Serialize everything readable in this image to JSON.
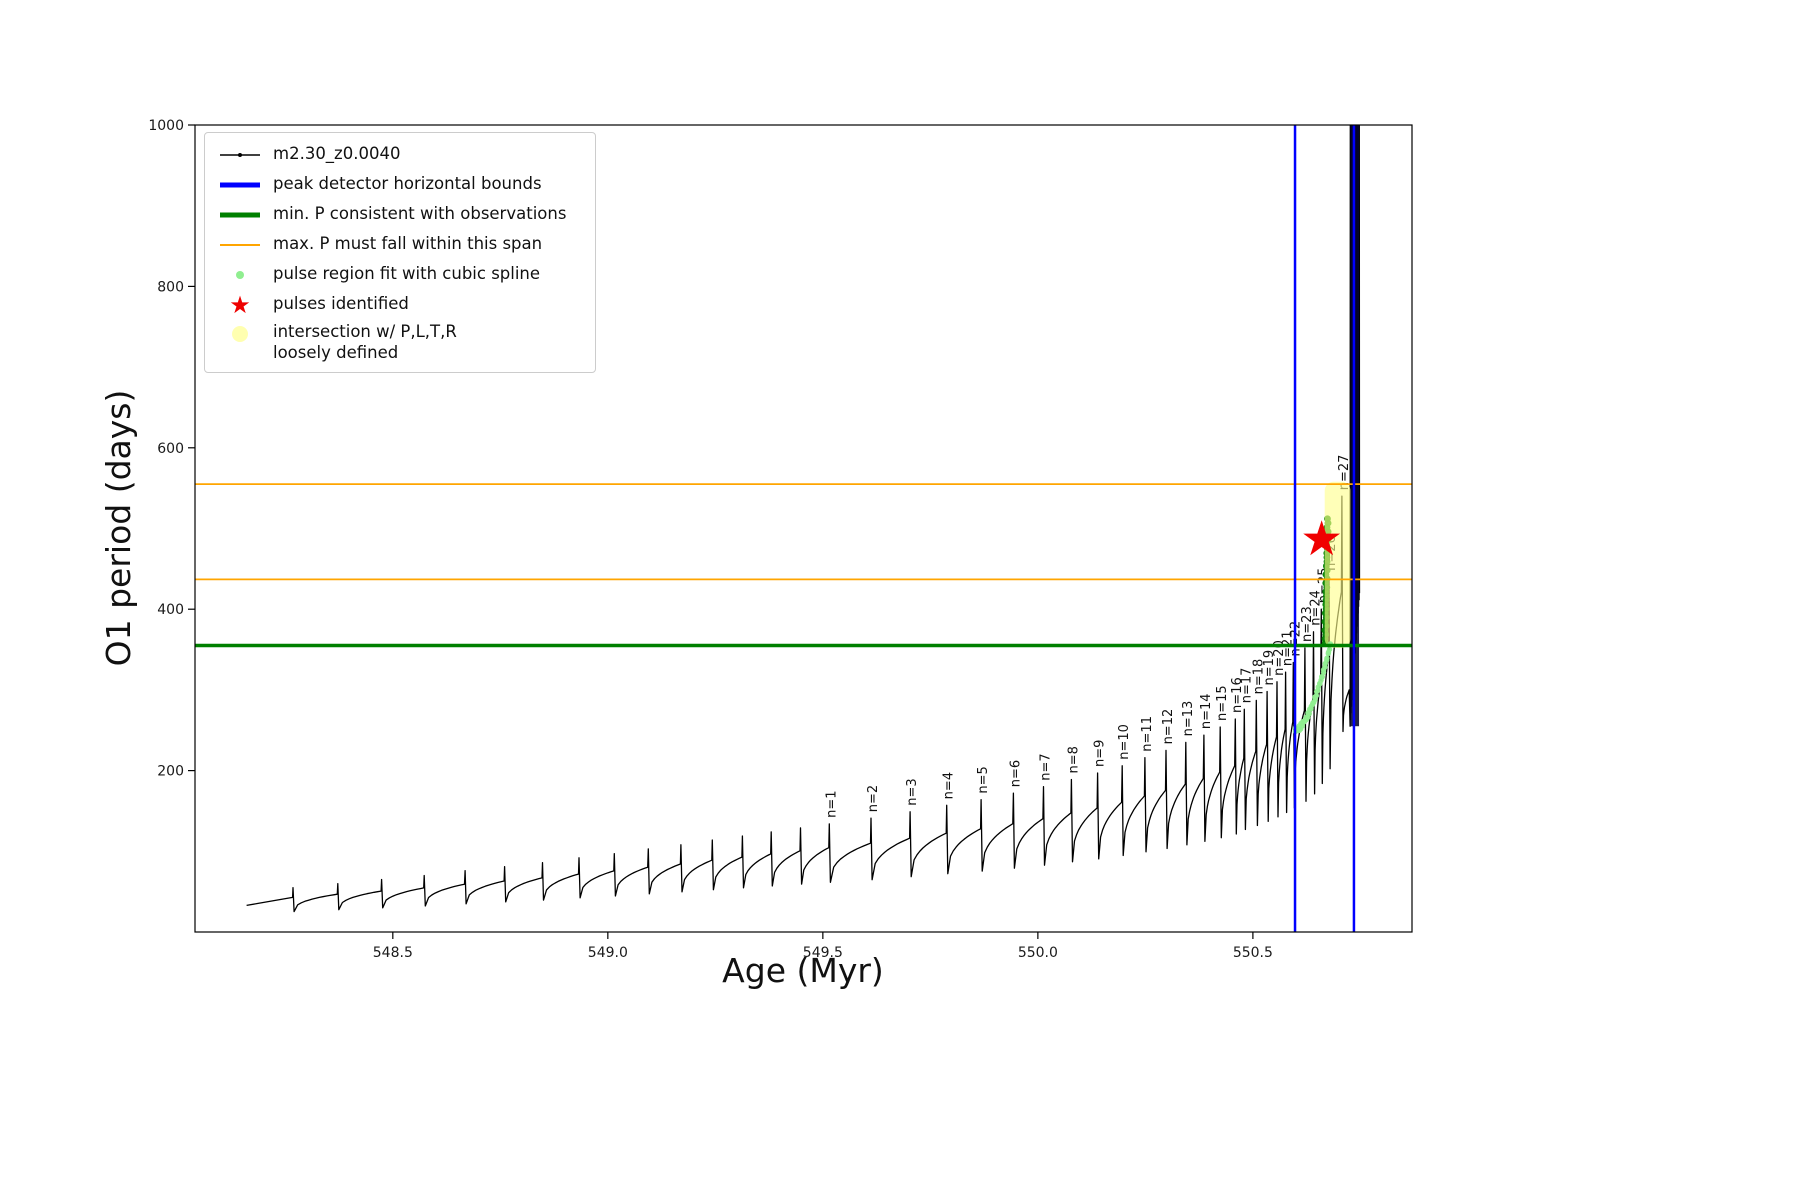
{
  "axes": {
    "xlabel": "Age (Myr)",
    "ylabel": "O1 period (days)",
    "xticks": [
      548.5,
      549.0,
      549.5,
      550.0,
      550.5
    ],
    "xtick_labels": [
      "548.5",
      "549.0",
      "549.5",
      "550.0",
      "550.5"
    ],
    "yticks": [
      200,
      400,
      600,
      800,
      1000
    ],
    "ytick_labels": [
      "200",
      "400",
      "600",
      "800",
      "1000"
    ]
  },
  "legend": {
    "items": [
      {
        "label": "m2.30_z0.0040",
        "type": "line-dot",
        "color": "#000000"
      },
      {
        "label": "peak detector horizontal bounds",
        "type": "thick-line",
        "color": "#0000ff"
      },
      {
        "label": "min. P consistent with observations",
        "type": "thick-line",
        "color": "#008000"
      },
      {
        "label": "max. P must fall within this span",
        "type": "line",
        "color": "#ffa500"
      },
      {
        "label": "pulse region fit with cubic spline",
        "type": "dot",
        "color": "#90ee90"
      },
      {
        "label": "pulses identified",
        "type": "star",
        "color": "#ee0000"
      },
      {
        "label": "intersection w/ P,L,T,R\nloosely defined",
        "type": "big-dot",
        "color": "#ffffb0"
      }
    ]
  },
  "chart_data": {
    "type": "line",
    "series_name": "m2.30_z0.0040",
    "xlabel": "Age (Myr)",
    "ylabel": "O1 period (days)",
    "xlim": [
      548.04,
      550.87
    ],
    "ylim": [
      0,
      1000
    ],
    "series_start": [
      548.16,
      33
    ],
    "unlabeled_pulses": [
      [
        548.268,
        55
      ],
      [
        548.372,
        60
      ],
      [
        548.474,
        65
      ],
      [
        548.573,
        70
      ],
      [
        548.668,
        76
      ],
      [
        548.76,
        81
      ],
      [
        548.848,
        86
      ],
      [
        548.933,
        92
      ],
      [
        549.015,
        97
      ],
      [
        549.094,
        103
      ],
      [
        549.17,
        108
      ],
      [
        549.243,
        114
      ],
      [
        549.313,
        119
      ],
      [
        549.38,
        124
      ],
      [
        549.448,
        129
      ]
    ],
    "pulses": [
      {
        "label": "n=1",
        "age": 549.515,
        "peak": 134
      },
      {
        "label": "n=2",
        "age": 549.612,
        "peak": 141
      },
      {
        "label": "n=3",
        "age": 549.703,
        "peak": 149
      },
      {
        "label": "n=4",
        "age": 549.788,
        "peak": 157
      },
      {
        "label": "n=5",
        "age": 549.868,
        "peak": 164
      },
      {
        "label": "n=6",
        "age": 549.943,
        "peak": 172
      },
      {
        "label": "n=7",
        "age": 550.013,
        "peak": 180
      },
      {
        "label": "n=8",
        "age": 550.078,
        "peak": 189
      },
      {
        "label": "n=9",
        "age": 550.139,
        "peak": 197
      },
      {
        "label": "n=10",
        "age": 550.196,
        "peak": 206
      },
      {
        "label": "n=11",
        "age": 550.249,
        "peak": 216
      },
      {
        "label": "n=12",
        "age": 550.298,
        "peak": 225
      },
      {
        "label": "n=13",
        "age": 550.344,
        "peak": 235
      },
      {
        "label": "n=14",
        "age": 550.386,
        "peak": 244
      },
      {
        "label": "n=15",
        "age": 550.424,
        "peak": 254
      },
      {
        "label": "n=16",
        "age": 550.459,
        "peak": 264
      },
      {
        "label": "n=17",
        "age": 550.48,
        "peak": 276
      },
      {
        "label": "n=18",
        "age": 550.508,
        "peak": 287
      },
      {
        "label": "n=19",
        "age": 550.533,
        "peak": 298
      },
      {
        "label": "n=20",
        "age": 550.556,
        "peak": 310
      },
      {
        "label": "n=21",
        "age": 550.576,
        "peak": 322
      },
      {
        "label": "n=22",
        "age": 550.594,
        "peak": 334
      },
      {
        "label": "n=23",
        "age": 550.621,
        "peak": 352
      },
      {
        "label": "n=24",
        "age": 550.641,
        "peak": 372
      },
      {
        "label": "n=25",
        "age": 550.659,
        "peak": 400
      },
      {
        "label": "n=26",
        "age": 550.677,
        "peak": 440
      },
      {
        "label": "n=27",
        "age": 550.707,
        "peak": 540
      }
    ],
    "hlines": [
      {
        "y": 355,
        "color": "#008000",
        "width": 3.5
      },
      {
        "y": 437,
        "color": "#ffa500",
        "width": 1.8
      },
      {
        "y": 555,
        "color": "#ffa500",
        "width": 1.8
      }
    ],
    "vlines": [
      {
        "x": 550.598,
        "color": "#0000ff",
        "width": 2.5
      },
      {
        "x": 550.735,
        "color": "#0000ff",
        "width": 2.5
      }
    ],
    "star": {
      "x": 550.66,
      "y": 487,
      "color": "#f00000"
    },
    "band": {
      "x0": 550.667,
      "x1": 550.727,
      "y0": 352,
      "y1": 558,
      "color": "#ffff8c"
    },
    "cluster": {
      "x": 550.67,
      "y0": 358,
      "y1": 512,
      "color": "#008000"
    },
    "spline": {
      "x0": 550.598,
      "x1": 550.68,
      "y0": 250,
      "y1": 355,
      "color": "#90ee90"
    },
    "runaway": {
      "x0": 550.726,
      "x1": 550.748,
      "low0": 255,
      "low1": 420,
      "high": 1000
    }
  }
}
